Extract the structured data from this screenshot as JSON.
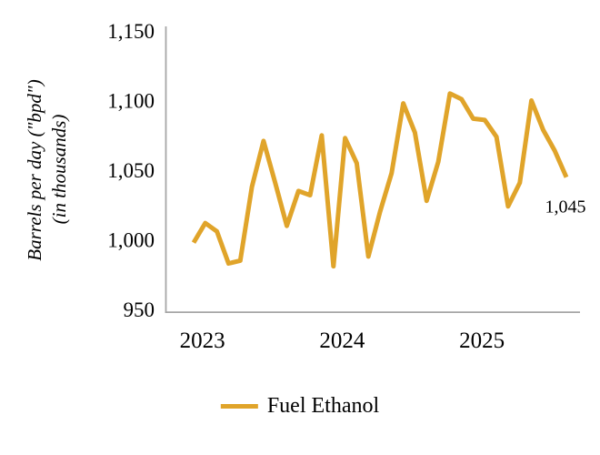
{
  "chart": {
    "y_axis_title_line1": "Barrels per day (\"bpd\")",
    "y_axis_title_line2": "(in thousands)"
  },
  "legend": {
    "label": "Fuel Ethanol",
    "swatch_color": "#E0A42A"
  },
  "chart_data": {
    "type": "line",
    "title": "",
    "xlabel": "",
    "ylabel": "Barrels per day (\"bpd\") (in thousands)",
    "ylim": [
      950,
      1150
    ],
    "grid": false,
    "legend_position": "bottom",
    "line_color": "#E0A42A",
    "axis_color": "#A6A6A6",
    "end_label": "1,045",
    "y_ticks": [
      {
        "value": 1150,
        "label": "1,150"
      },
      {
        "value": 1100,
        "label": "1,100"
      },
      {
        "value": 1050,
        "label": "1,050"
      },
      {
        "value": 1000,
        "label": "1,000"
      },
      {
        "value": 950,
        "label": "950"
      }
    ],
    "x_ticks": [
      "2023",
      "2024",
      "2025"
    ],
    "x": [
      "Jan 2023",
      "Feb 2023",
      "Mar 2023",
      "Apr 2023",
      "May 2023",
      "Jun 2023",
      "Jul 2023",
      "Aug 2023",
      "Sep 2023",
      "Oct 2023",
      "Nov 2023",
      "Dec 2023",
      "Jan 2024",
      "Feb 2024",
      "Mar 2024",
      "Apr 2024",
      "May 2024",
      "Jun 2024",
      "Jul 2024",
      "Aug 2024",
      "Sep 2024",
      "Oct 2024",
      "Nov 2024",
      "Dec 2024",
      "Jan 2025",
      "Feb 2025",
      "Mar 2025",
      "Apr 2025",
      "May 2025",
      "Jun 2025",
      "Jul 2025",
      "Aug 2025",
      "Sep 2025"
    ],
    "series": [
      {
        "name": "Fuel Ethanol",
        "values": [
          998,
          1012,
          1006,
          983,
          985,
          1038,
          1071,
          1041,
          1010,
          1035,
          1032,
          1075,
          981,
          1073,
          1055,
          988,
          1020,
          1048,
          1098,
          1077,
          1028,
          1056,
          1105,
          1101,
          1087,
          1086,
          1074,
          1024,
          1041,
          1100,
          1079,
          1064,
          1045
        ]
      }
    ]
  }
}
